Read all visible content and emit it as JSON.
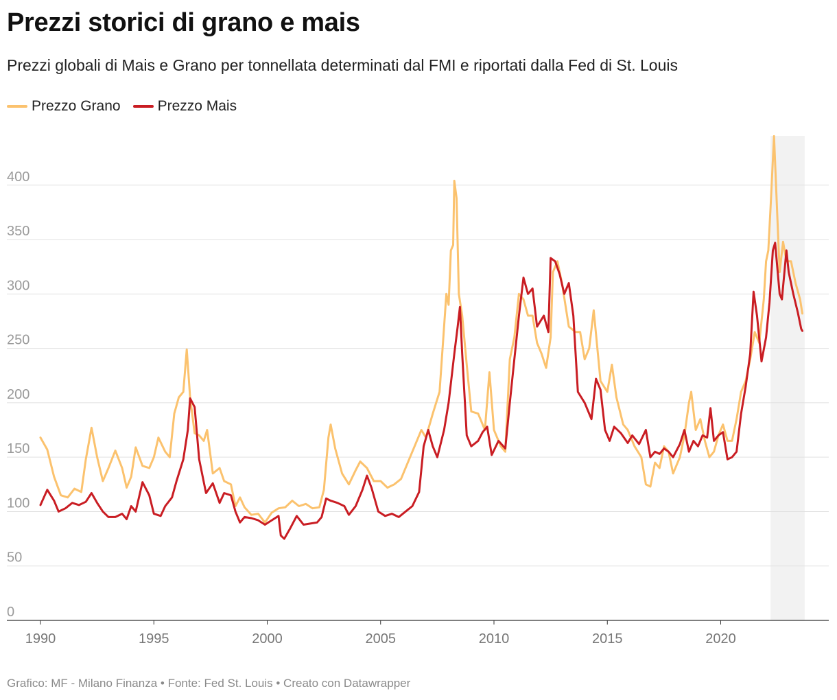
{
  "chart_data": {
    "type": "line",
    "title": "Prezzi storici di grano e mais",
    "subtitle": "Prezzi globali di Mais e Grano per tonnellata determinati dal FMI e riportati dalla Fed di St. Louis",
    "xlabel": "",
    "ylabel": "",
    "xlim": [
      1989.8,
      2023.9
    ],
    "ylim": [
      0,
      450
    ],
    "yticks": [
      0,
      50,
      100,
      150,
      200,
      250,
      300,
      350,
      400
    ],
    "xticks": [
      1990,
      1995,
      2000,
      2005,
      2010,
      2015,
      2020
    ],
    "highlight_range": [
      2022.2,
      2023.7
    ],
    "legend": [
      "Prezzo Grano",
      "Prezzo Mais"
    ],
    "series": [
      {
        "name": "Prezzo Grano",
        "color": "#fbc26e",
        "points": [
          [
            1990.0,
            168
          ],
          [
            1990.3,
            157
          ],
          [
            1990.6,
            132
          ],
          [
            1990.9,
            115
          ],
          [
            1991.2,
            113
          ],
          [
            1991.5,
            121
          ],
          [
            1991.8,
            118
          ],
          [
            1992.0,
            148
          ],
          [
            1992.25,
            177
          ],
          [
            1992.5,
            150
          ],
          [
            1992.75,
            128
          ],
          [
            1993.0,
            140
          ],
          [
            1993.3,
            156
          ],
          [
            1993.6,
            140
          ],
          [
            1993.8,
            122
          ],
          [
            1994.0,
            132
          ],
          [
            1994.2,
            159
          ],
          [
            1994.5,
            142
          ],
          [
            1994.8,
            140
          ],
          [
            1995.0,
            150
          ],
          [
            1995.2,
            168
          ],
          [
            1995.5,
            155
          ],
          [
            1995.7,
            150
          ],
          [
            1995.9,
            190
          ],
          [
            1996.1,
            205
          ],
          [
            1996.3,
            210
          ],
          [
            1996.45,
            249
          ],
          [
            1996.6,
            205
          ],
          [
            1996.8,
            172
          ],
          [
            1997.0,
            170
          ],
          [
            1997.2,
            165
          ],
          [
            1997.35,
            175
          ],
          [
            1997.6,
            135
          ],
          [
            1997.9,
            140
          ],
          [
            1998.1,
            128
          ],
          [
            1998.4,
            125
          ],
          [
            1998.6,
            105
          ],
          [
            1998.8,
            113
          ],
          [
            1999.0,
            104
          ],
          [
            1999.3,
            97
          ],
          [
            1999.6,
            98
          ],
          [
            1999.9,
            90
          ],
          [
            2000.2,
            99
          ],
          [
            2000.5,
            103
          ],
          [
            2000.8,
            104
          ],
          [
            2001.1,
            110
          ],
          [
            2001.4,
            105
          ],
          [
            2001.7,
            107
          ],
          [
            2002.0,
            103
          ],
          [
            2002.3,
            104
          ],
          [
            2002.5,
            120
          ],
          [
            2002.7,
            168
          ],
          [
            2002.8,
            180
          ],
          [
            2003.0,
            158
          ],
          [
            2003.3,
            135
          ],
          [
            2003.6,
            125
          ],
          [
            2003.9,
            138
          ],
          [
            2004.1,
            146
          ],
          [
            2004.4,
            140
          ],
          [
            2004.7,
            128
          ],
          [
            2005.0,
            128
          ],
          [
            2005.3,
            122
          ],
          [
            2005.6,
            125
          ],
          [
            2005.9,
            130
          ],
          [
            2006.2,
            145
          ],
          [
            2006.5,
            160
          ],
          [
            2006.8,
            175
          ],
          [
            2007.0,
            168
          ],
          [
            2007.3,
            190
          ],
          [
            2007.6,
            210
          ],
          [
            2007.8,
            270
          ],
          [
            2007.9,
            300
          ],
          [
            2008.0,
            290
          ],
          [
            2008.1,
            340
          ],
          [
            2008.2,
            345
          ],
          [
            2008.25,
            404
          ],
          [
            2008.35,
            388
          ],
          [
            2008.45,
            300
          ],
          [
            2008.6,
            280
          ],
          [
            2008.8,
            235
          ],
          [
            2009.0,
            192
          ],
          [
            2009.3,
            190
          ],
          [
            2009.6,
            175
          ],
          [
            2009.8,
            228
          ],
          [
            2010.0,
            175
          ],
          [
            2010.3,
            160
          ],
          [
            2010.5,
            155
          ],
          [
            2010.7,
            240
          ],
          [
            2010.9,
            260
          ],
          [
            2011.1,
            300
          ],
          [
            2011.3,
            295
          ],
          [
            2011.5,
            280
          ],
          [
            2011.7,
            280
          ],
          [
            2011.9,
            255
          ],
          [
            2012.1,
            245
          ],
          [
            2012.3,
            232
          ],
          [
            2012.5,
            260
          ],
          [
            2012.6,
            320
          ],
          [
            2012.8,
            330
          ],
          [
            2013.0,
            310
          ],
          [
            2013.3,
            270
          ],
          [
            2013.6,
            265
          ],
          [
            2013.8,
            265
          ],
          [
            2014.0,
            240
          ],
          [
            2014.2,
            250
          ],
          [
            2014.4,
            285
          ],
          [
            2014.7,
            220
          ],
          [
            2015.0,
            210
          ],
          [
            2015.2,
            235
          ],
          [
            2015.4,
            205
          ],
          [
            2015.7,
            180
          ],
          [
            2015.9,
            175
          ],
          [
            2016.2,
            160
          ],
          [
            2016.5,
            150
          ],
          [
            2016.7,
            125
          ],
          [
            2016.9,
            123
          ],
          [
            2017.1,
            145
          ],
          [
            2017.3,
            140
          ],
          [
            2017.5,
            160
          ],
          [
            2017.7,
            155
          ],
          [
            2017.9,
            135
          ],
          [
            2018.2,
            150
          ],
          [
            2018.4,
            170
          ],
          [
            2018.6,
            200
          ],
          [
            2018.7,
            210
          ],
          [
            2018.9,
            175
          ],
          [
            2019.1,
            185
          ],
          [
            2019.3,
            165
          ],
          [
            2019.5,
            150
          ],
          [
            2019.7,
            155
          ],
          [
            2019.9,
            170
          ],
          [
            2020.1,
            180
          ],
          [
            2020.3,
            165
          ],
          [
            2020.5,
            165
          ],
          [
            2020.7,
            185
          ],
          [
            2020.9,
            210
          ],
          [
            2021.1,
            220
          ],
          [
            2021.3,
            240
          ],
          [
            2021.5,
            265
          ],
          [
            2021.7,
            255
          ],
          [
            2021.9,
            295
          ],
          [
            2022.0,
            330
          ],
          [
            2022.1,
            340
          ],
          [
            2022.2,
            380
          ],
          [
            2022.35,
            445
          ],
          [
            2022.5,
            370
          ],
          [
            2022.6,
            320
          ],
          [
            2022.75,
            348
          ],
          [
            2022.9,
            330
          ],
          [
            2023.1,
            330
          ],
          [
            2023.3,
            310
          ],
          [
            2023.5,
            295
          ],
          [
            2023.6,
            282
          ]
        ]
      },
      {
        "name": "Prezzo Mais",
        "color": "#c91d23",
        "points": [
          [
            1990.0,
            106
          ],
          [
            1990.3,
            120
          ],
          [
            1990.6,
            110
          ],
          [
            1990.8,
            100
          ],
          [
            1991.1,
            103
          ],
          [
            1991.4,
            108
          ],
          [
            1991.7,
            106
          ],
          [
            1992.0,
            109
          ],
          [
            1992.25,
            117
          ],
          [
            1992.5,
            108
          ],
          [
            1992.75,
            100
          ],
          [
            1993.0,
            95
          ],
          [
            1993.3,
            95
          ],
          [
            1993.6,
            98
          ],
          [
            1993.8,
            93
          ],
          [
            1994.0,
            105
          ],
          [
            1994.2,
            100
          ],
          [
            1994.5,
            127
          ],
          [
            1994.8,
            115
          ],
          [
            1995.0,
            98
          ],
          [
            1995.3,
            96
          ],
          [
            1995.5,
            105
          ],
          [
            1995.8,
            113
          ],
          [
            1996.0,
            128
          ],
          [
            1996.3,
            148
          ],
          [
            1996.5,
            175
          ],
          [
            1996.6,
            204
          ],
          [
            1996.8,
            196
          ],
          [
            1997.0,
            148
          ],
          [
            1997.3,
            117
          ],
          [
            1997.6,
            126
          ],
          [
            1997.9,
            108
          ],
          [
            1998.1,
            117
          ],
          [
            1998.4,
            115
          ],
          [
            1998.6,
            100
          ],
          [
            1998.8,
            90
          ],
          [
            1999.0,
            95
          ],
          [
            1999.3,
            94
          ],
          [
            1999.6,
            92
          ],
          [
            1999.9,
            88
          ],
          [
            2000.2,
            92
          ],
          [
            2000.5,
            96
          ],
          [
            2000.6,
            78
          ],
          [
            2000.75,
            75
          ],
          [
            2001.0,
            84
          ],
          [
            2001.3,
            96
          ],
          [
            2001.6,
            88
          ],
          [
            2001.9,
            89
          ],
          [
            2002.2,
            90
          ],
          [
            2002.4,
            95
          ],
          [
            2002.6,
            112
          ],
          [
            2002.8,
            110
          ],
          [
            2003.1,
            108
          ],
          [
            2003.4,
            105
          ],
          [
            2003.6,
            97
          ],
          [
            2003.9,
            105
          ],
          [
            2004.2,
            120
          ],
          [
            2004.4,
            133
          ],
          [
            2004.6,
            122
          ],
          [
            2004.9,
            100
          ],
          [
            2005.2,
            96
          ],
          [
            2005.5,
            98
          ],
          [
            2005.8,
            95
          ],
          [
            2006.1,
            100
          ],
          [
            2006.4,
            105
          ],
          [
            2006.7,
            118
          ],
          [
            2006.9,
            160
          ],
          [
            2007.1,
            175
          ],
          [
            2007.3,
            160
          ],
          [
            2007.5,
            150
          ],
          [
            2007.8,
            175
          ],
          [
            2008.0,
            200
          ],
          [
            2008.25,
            245
          ],
          [
            2008.4,
            270
          ],
          [
            2008.5,
            288
          ],
          [
            2008.6,
            245
          ],
          [
            2008.8,
            170
          ],
          [
            2009.0,
            160
          ],
          [
            2009.3,
            165
          ],
          [
            2009.5,
            173
          ],
          [
            2009.7,
            178
          ],
          [
            2009.9,
            152
          ],
          [
            2010.2,
            165
          ],
          [
            2010.5,
            158
          ],
          [
            2010.7,
            200
          ],
          [
            2010.9,
            240
          ],
          [
            2011.1,
            280
          ],
          [
            2011.3,
            315
          ],
          [
            2011.5,
            300
          ],
          [
            2011.7,
            305
          ],
          [
            2011.9,
            270
          ],
          [
            2012.2,
            280
          ],
          [
            2012.4,
            265
          ],
          [
            2012.5,
            333
          ],
          [
            2012.7,
            330
          ],
          [
            2012.9,
            318
          ],
          [
            2013.1,
            300
          ],
          [
            2013.3,
            310
          ],
          [
            2013.5,
            280
          ],
          [
            2013.7,
            210
          ],
          [
            2014.0,
            200
          ],
          [
            2014.3,
            185
          ],
          [
            2014.5,
            222
          ],
          [
            2014.7,
            212
          ],
          [
            2014.9,
            175
          ],
          [
            2015.1,
            165
          ],
          [
            2015.3,
            178
          ],
          [
            2015.6,
            172
          ],
          [
            2015.9,
            163
          ],
          [
            2016.1,
            170
          ],
          [
            2016.4,
            162
          ],
          [
            2016.7,
            175
          ],
          [
            2016.9,
            150
          ],
          [
            2017.1,
            155
          ],
          [
            2017.3,
            153
          ],
          [
            2017.5,
            158
          ],
          [
            2017.7,
            155
          ],
          [
            2017.9,
            150
          ],
          [
            2018.2,
            162
          ],
          [
            2018.4,
            175
          ],
          [
            2018.6,
            155
          ],
          [
            2018.8,
            165
          ],
          [
            2019.0,
            160
          ],
          [
            2019.2,
            170
          ],
          [
            2019.4,
            168
          ],
          [
            2019.55,
            195
          ],
          [
            2019.7,
            165
          ],
          [
            2019.9,
            170
          ],
          [
            2020.1,
            173
          ],
          [
            2020.3,
            148
          ],
          [
            2020.5,
            150
          ],
          [
            2020.7,
            155
          ],
          [
            2020.9,
            190
          ],
          [
            2021.1,
            215
          ],
          [
            2021.3,
            245
          ],
          [
            2021.45,
            302
          ],
          [
            2021.6,
            280
          ],
          [
            2021.8,
            238
          ],
          [
            2022.0,
            260
          ],
          [
            2022.15,
            292
          ],
          [
            2022.3,
            340
          ],
          [
            2022.4,
            347
          ],
          [
            2022.6,
            300
          ],
          [
            2022.7,
            295
          ],
          [
            2022.9,
            340
          ],
          [
            2023.0,
            320
          ],
          [
            2023.2,
            300
          ],
          [
            2023.4,
            283
          ],
          [
            2023.55,
            268
          ],
          [
            2023.6,
            266
          ]
        ]
      }
    ]
  },
  "footer": "Grafico: MF - Milano Finanza  • Fonte: Fed St. Louis • Creato con Datawrapper"
}
